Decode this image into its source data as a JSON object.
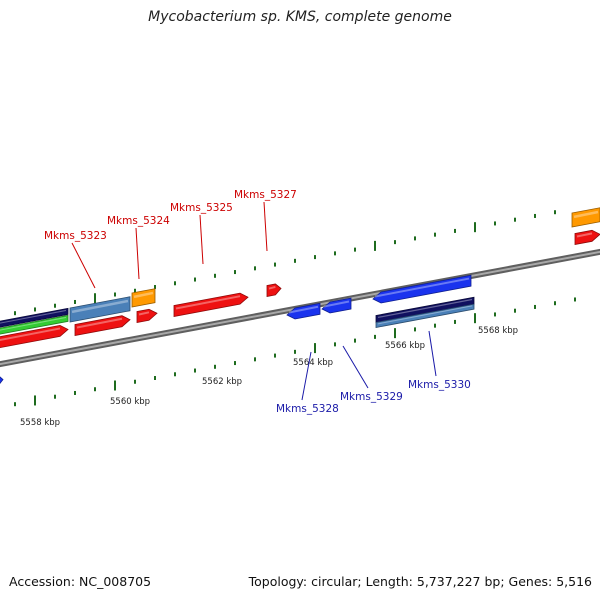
{
  "header": {
    "title": "Mycobacterium sp. KMS, complete genome"
  },
  "footer": {
    "accession": "Accession: NC_008705",
    "summary": "Topology: circular; Length: 5,737,227 bp; Genes: 5,516"
  },
  "colors": {
    "forward_label": "#cc0000",
    "reverse_label": "#1a1aa8",
    "tick": "#1e6b1e",
    "backbone": "#8a8a8a",
    "red": "#ee1111",
    "blue": "#1a33ee",
    "navy": "#101060",
    "steel": "#4a80b8",
    "green": "#33cc33",
    "orange": "#ff9900"
  },
  "scale_labels": [
    "5558 kbp",
    "5560 kbp",
    "5562 kbp",
    "5564 kbp",
    "5566 kbp",
    "5568 kbp"
  ],
  "forward_genes": [
    "Mkms_5323",
    "Mkms_5324",
    "Mkms_5325",
    "Mkms_5327"
  ],
  "reverse_genes": [
    "Mkms_5328",
    "Mkms_5329",
    "Mkms_5330"
  ]
}
